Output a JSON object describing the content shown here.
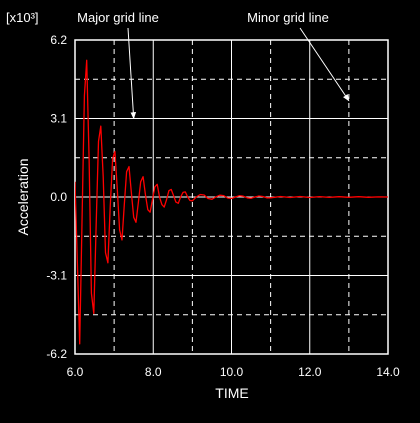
{
  "chart_data": {
    "type": "line",
    "title": "",
    "xlabel": "TIME",
    "ylabel": "Acceleration",
    "y_multiplier": "[x10³]",
    "xlim": [
      6.0,
      14.0
    ],
    "ylim": [
      -6.2,
      6.2
    ],
    "x_tick_labels": [
      "6.0",
      "8.0",
      "10.0",
      "12.0",
      "14.0"
    ],
    "y_tick_labels": [
      "6.2",
      "3.1",
      "0.0",
      "-3.1",
      "-6.2"
    ],
    "major_grid": {
      "x": [
        8.0,
        10.0,
        12.0
      ],
      "y": [
        3.1,
        0.0,
        -3.1
      ]
    },
    "minor_grid": {
      "x": [
        7.0,
        9.0,
        11.0,
        13.0
      ],
      "y": [
        4.65,
        1.55,
        -1.55,
        -4.65
      ]
    },
    "annotations": [
      {
        "text": "Major grid line",
        "target": [
          7.5,
          3.1
        ]
      },
      {
        "text": "Minor grid line",
        "target": [
          13.0,
          3.8
        ]
      }
    ],
    "series": [
      {
        "color": "#ff0000",
        "x": [
          6.0,
          6.06,
          6.12,
          6.18,
          6.24,
          6.3,
          6.36,
          6.42,
          6.48,
          6.54,
          6.6,
          6.66,
          6.72,
          6.78,
          6.84,
          6.9,
          6.96,
          7.02,
          7.08,
          7.14,
          7.2,
          7.26,
          7.32,
          7.38,
          7.44,
          7.5,
          7.56,
          7.62,
          7.68,
          7.74,
          7.8,
          7.86,
          7.92,
          7.98,
          8.04,
          8.1,
          8.16,
          8.22,
          8.28,
          8.34,
          8.4,
          8.46,
          8.52,
          8.58,
          8.64,
          8.7,
          8.76,
          8.82,
          8.88,
          8.94,
          9.0,
          9.1,
          9.2,
          9.3,
          9.4,
          9.5,
          9.6,
          9.7,
          9.8,
          9.9,
          10.0,
          10.1,
          10.2,
          10.3,
          10.4,
          10.5,
          10.6,
          10.7,
          10.8,
          10.9,
          11.0,
          11.25,
          11.5,
          11.75,
          12.0,
          12.25,
          12.5,
          12.75,
          13.0,
          13.25,
          13.5,
          13.75,
          14.0
        ],
        "y": [
          0.6,
          -2.5,
          -5.8,
          -1.0,
          4.0,
          5.4,
          1.5,
          -3.8,
          -4.6,
          -1.2,
          2.2,
          2.8,
          0.8,
          -2.2,
          -2.6,
          -0.4,
          1.5,
          1.8,
          0.3,
          -1.3,
          -1.7,
          -0.3,
          1.0,
          1.2,
          0.2,
          -0.8,
          -1.0,
          -0.2,
          0.6,
          0.8,
          0.1,
          -0.5,
          -0.6,
          -0.1,
          0.4,
          0.5,
          0.0,
          -0.3,
          -0.4,
          -0.1,
          0.25,
          0.3,
          0.05,
          -0.2,
          -0.25,
          0.0,
          0.18,
          0.2,
          0.0,
          -0.14,
          -0.15,
          0.0,
          0.1,
          0.08,
          -0.06,
          -0.09,
          0.0,
          0.07,
          0.05,
          -0.04,
          -0.06,
          0.0,
          0.05,
          0.03,
          -0.03,
          -0.05,
          0.0,
          0.04,
          0.02,
          -0.03,
          -0.03,
          0.02,
          -0.02,
          0.02,
          -0.02,
          0.015,
          -0.015,
          0.01,
          -0.01,
          0.01,
          -0.01,
          0.005,
          0.0
        ]
      }
    ],
    "grid": true,
    "legend": "none"
  }
}
